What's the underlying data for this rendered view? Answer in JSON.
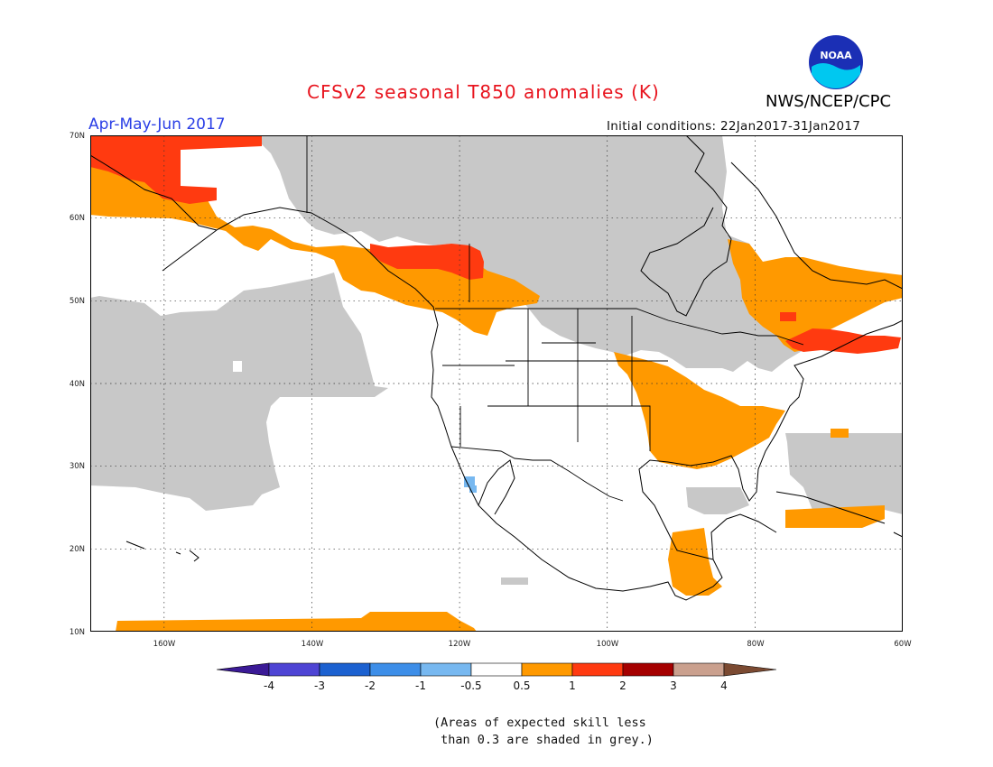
{
  "header": {
    "title": "CFSv2 seasonal T850 anomalies (K)",
    "period": "Apr-May-Jun 2017",
    "agency": "NWS/NCEP/CPC",
    "initial_conditions": "Initial conditions: 22Jan2017-31Jan2017",
    "logo_text": "NOAA"
  },
  "map": {
    "lon_range": [
      -170,
      -60
    ],
    "lat_range": [
      10,
      70
    ],
    "lat_ticks": [
      "10N",
      "20N",
      "30N",
      "40N",
      "50N",
      "60N",
      "70N"
    ],
    "lon_ticks": [
      "160W",
      "140W",
      "120W",
      "100W",
      "80W",
      "60W"
    ]
  },
  "legend": {
    "labels": [
      "-4",
      "-3",
      "-2",
      "-1",
      "-0.5",
      "0.5",
      "1",
      "2",
      "3",
      "4"
    ],
    "colors": [
      "#3b1a96",
      "#4e44d4",
      "#1c61d0",
      "#3d8ee8",
      "#77b8f0",
      "#ffffff",
      "#ff9900",
      "#ff3a10",
      "#a50000",
      "#caa08e",
      "#7b4a32"
    ]
  },
  "note": {
    "line1": "(Areas of expected skill less",
    "line2": " than 0.3 are shaded in grey.)"
  },
  "colors": {
    "grey": "#c8c8c8",
    "orange": "#ff9900",
    "red": "#ff3a10",
    "lightblue": "#77b8f0"
  }
}
